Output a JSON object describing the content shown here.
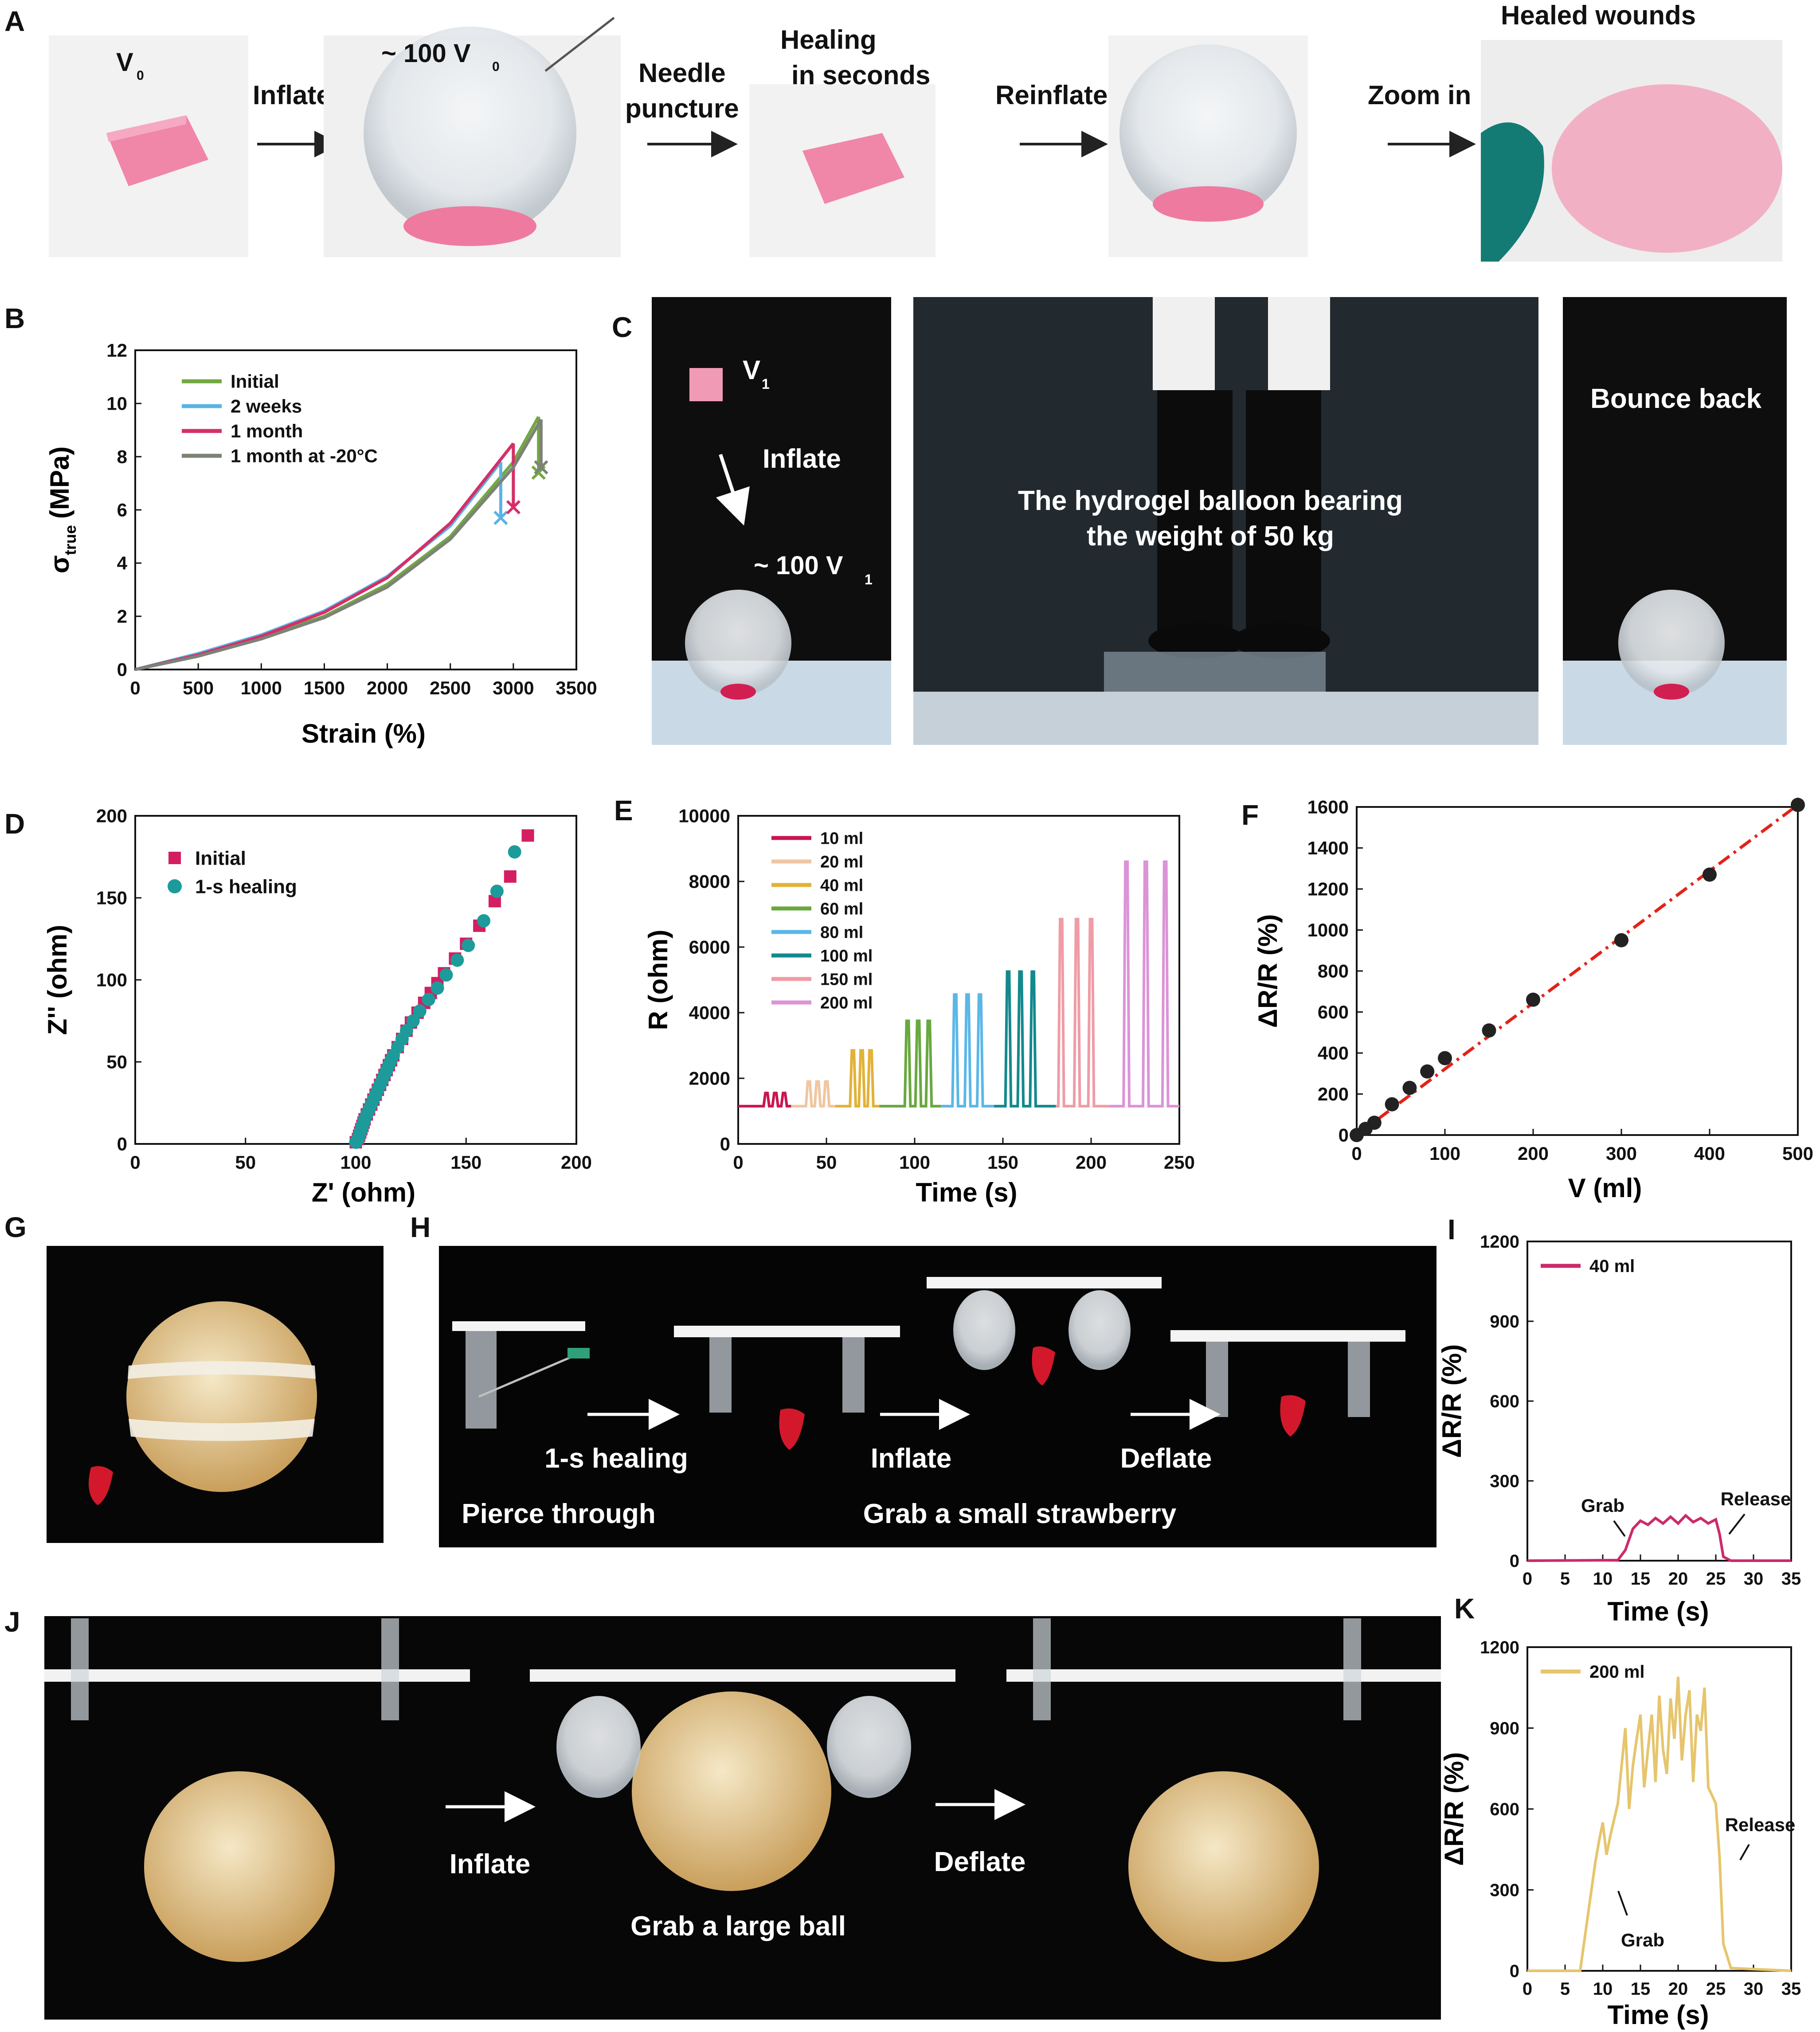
{
  "panel_letters": {
    "a": "A",
    "b": "B",
    "c": "C",
    "d": "D",
    "e": "E",
    "f": "F",
    "g": "G",
    "h": "H",
    "i": "I",
    "j": "J",
    "k": "K"
  },
  "panel_a": {
    "v0": "V",
    "v0_sub": "0",
    "inflate": "Inflate",
    "tilde_100": "~ 100 V",
    "tilde_100_sub": "0",
    "needle_1": "Needle",
    "needle_2": "puncture",
    "healing_1": "Healing",
    "healing_2": "in seconds",
    "reinflate": "Reinflate",
    "zoom_in": "Zoom in",
    "healed_wounds": "Healed wounds"
  },
  "panel_c": {
    "v1": "V",
    "v1_sub": "1",
    "inflate": "Inflate",
    "tilde_100": "~ 100 V",
    "tilde_100_sub": "1",
    "bearing_1": "The hydrogel balloon bearing",
    "bearing_2": "the weight of 50 kg",
    "bounce_back": "Bounce back"
  },
  "panel_h": {
    "healing": "1-s healing",
    "inflate": "Inflate",
    "deflate": "Deflate",
    "pierce": "Pierce through",
    "grab": "Grab a small strawberry"
  },
  "panel_j": {
    "inflate": "Inflate",
    "deflate": "Deflate",
    "grab": "Grab a large ball"
  },
  "colors": {
    "initial_green": "#72a843",
    "two_weeks_blue": "#5ab3e4",
    "one_month_red": "#d52f67",
    "cold_gray": "#7d8277",
    "d_initial": "#d41e62",
    "d_healing": "#1d9b9b",
    "f_line": "#e2231a",
    "i_line": "#cc2a6b",
    "k_line": "#e6c56d",
    "photo_dark": "#111111",
    "hydrogel_pink": "#ef7aa0",
    "ball_tan": "#d9b47a"
  },
  "chart_data": [
    {
      "id": "B",
      "type": "line",
      "xlabel": "Strain (%)",
      "ylabel": "σ",
      "ylabel_sub": "true",
      "ylabel_unit": "(MPa)",
      "xlim": [
        0,
        3500
      ],
      "ylim": [
        0,
        12
      ],
      "xticks": [
        0,
        500,
        1000,
        1500,
        2000,
        2500,
        3000,
        3500
      ],
      "yticks": [
        0,
        2,
        4,
        6,
        8,
        10,
        12
      ],
      "legend": "top-left",
      "series": [
        {
          "name": "Initial",
          "color": "#72a843",
          "x": [
            0,
            500,
            1000,
            1500,
            2000,
            2500,
            3000,
            3200
          ],
          "y": [
            0,
            0.55,
            1.2,
            2.0,
            3.2,
            5.0,
            7.8,
            9.5
          ],
          "break": [
            3200,
            7.4
          ]
        },
        {
          "name": "2 weeks",
          "color": "#5ab3e4",
          "x": [
            0,
            500,
            1000,
            1500,
            2000,
            2500,
            2900
          ],
          "y": [
            0,
            0.6,
            1.3,
            2.2,
            3.5,
            5.4,
            7.8
          ],
          "break": [
            2900,
            5.7
          ]
        },
        {
          "name": "1 month",
          "color": "#d52f67",
          "x": [
            0,
            500,
            1000,
            1500,
            2000,
            2500,
            3000
          ],
          "y": [
            0,
            0.55,
            1.25,
            2.15,
            3.45,
            5.5,
            8.5
          ],
          "break": [
            3000,
            6.1
          ]
        },
        {
          "name": "1 month at -20°C",
          "color": "#7d8277",
          "x": [
            0,
            500,
            1000,
            1500,
            2000,
            2500,
            3000,
            3220
          ],
          "y": [
            0,
            0.5,
            1.15,
            1.95,
            3.1,
            4.9,
            7.6,
            9.4
          ],
          "break": [
            3220,
            7.6
          ]
        }
      ]
    },
    {
      "id": "D",
      "type": "scatter",
      "xlabel": "Z' (ohm)",
      "ylabel": "Z'' (ohm)",
      "xlim": [
        0,
        200
      ],
      "ylim": [
        0,
        200
      ],
      "xticks": [
        0,
        50,
        100,
        150,
        200
      ],
      "yticks": [
        0,
        50,
        100,
        150,
        200
      ],
      "legend": "top-left",
      "series": [
        {
          "name": "Initial",
          "color": "#d41e62",
          "marker": "square",
          "x": [
            100,
            101,
            101.5,
            102,
            102.5,
            103,
            103.5,
            104,
            105,
            106,
            107,
            108,
            109,
            110,
            111,
            112,
            113,
            114,
            115,
            116,
            117,
            119,
            121,
            123,
            125,
            128,
            131,
            134,
            137,
            140,
            145,
            150,
            156,
            163,
            170,
            178
          ],
          "y": [
            1,
            3,
            5,
            7,
            9,
            11,
            13,
            15,
            18,
            21,
            24,
            27,
            30,
            33,
            36,
            39,
            42,
            45,
            48,
            51,
            54,
            59,
            64,
            69,
            74,
            80,
            86,
            92,
            98,
            104,
            113,
            122,
            133,
            148,
            163,
            188
          ]
        },
        {
          "name": "1-s healing",
          "color": "#1d9b9b",
          "marker": "circle",
          "x": [
            100,
            101,
            101.5,
            102,
            102.5,
            103,
            103.5,
            104,
            105,
            106,
            107,
            108,
            109,
            110,
            111,
            112,
            113,
            114,
            115,
            116,
            117,
            119,
            121,
            123,
            126,
            129,
            133,
            137,
            141,
            146,
            151,
            158,
            164,
            172
          ],
          "y": [
            1,
            3,
            5,
            7,
            9,
            11,
            13,
            15,
            18,
            21,
            24,
            27,
            30,
            33,
            36,
            39,
            42,
            45,
            48,
            51,
            54,
            59,
            64,
            69,
            75,
            81,
            88,
            95,
            103,
            112,
            121,
            136,
            154,
            178
          ]
        }
      ]
    },
    {
      "id": "E",
      "type": "line",
      "xlabel": "Time (s)",
      "ylabel": "R (ohm)",
      "xlim": [
        0,
        250
      ],
      "ylim": [
        0,
        10000
      ],
      "xticks": [
        0,
        50,
        100,
        150,
        200,
        250
      ],
      "yticks": [
        0,
        2000,
        4000,
        6000,
        8000,
        10000
      ],
      "legend": "top-left",
      "baseline": 1150,
      "series": [
        {
          "name": "10 ml",
          "color": "#c8174f",
          "start": 0,
          "end": 30,
          "peaks": [
            16,
            21,
            26
          ],
          "peak_value": 1550
        },
        {
          "name": "20 ml",
          "color": "#f0c6a1",
          "start": 30,
          "end": 55,
          "peaks": [
            40,
            45,
            50
          ],
          "peak_value": 1900
        },
        {
          "name": "40 ml",
          "color": "#e2b237",
          "start": 55,
          "end": 80,
          "peaks": [
            65,
            70,
            75
          ],
          "peak_value": 2850
        },
        {
          "name": "60 ml",
          "color": "#69a83f",
          "start": 80,
          "end": 115,
          "peaks": [
            96,
            102,
            108
          ],
          "peak_value": 3750
        },
        {
          "name": "80 ml",
          "color": "#5bb7e8",
          "start": 115,
          "end": 145,
          "peaks": [
            123,
            130,
            137
          ],
          "peak_value": 4550
        },
        {
          "name": "100 ml",
          "color": "#13898d",
          "start": 145,
          "end": 180,
          "peaks": [
            153,
            160,
            167
          ],
          "peak_value": 5250
        },
        {
          "name": "150 ml",
          "color": "#ef9ca6",
          "start": 180,
          "end": 210,
          "peaks": [
            183,
            192,
            200
          ],
          "peak_value": 6850
        },
        {
          "name": "200 ml",
          "color": "#dc93d7",
          "start": 210,
          "end": 250,
          "peaks": [
            220,
            231,
            242
          ],
          "peak_value": 8600
        }
      ]
    },
    {
      "id": "F",
      "type": "scatter",
      "xlabel": "V (ml)",
      "ylabel": "ΔR/R (%)",
      "xlim": [
        0,
        500
      ],
      "ylim": [
        0,
        1600
      ],
      "xticks": [
        0,
        100,
        200,
        300,
        400,
        500
      ],
      "yticks": [
        0,
        200,
        400,
        600,
        800,
        1000,
        1200,
        1400,
        1600
      ],
      "x": [
        0,
        10,
        20,
        40,
        60,
        80,
        100,
        150,
        200,
        300,
        400,
        500
      ],
      "y": [
        0,
        30,
        60,
        150,
        230,
        310,
        375,
        510,
        660,
        950,
        1270,
        1610
      ],
      "error": [
        5,
        5,
        6,
        8,
        8,
        8,
        10,
        10,
        12,
        15,
        20,
        35
      ],
      "fit": {
        "x": [
          0,
          500
        ],
        "y": [
          0,
          1610
        ]
      }
    },
    {
      "id": "I",
      "type": "line",
      "xlabel": "Time (s)",
      "ylabel": "ΔR/R (%)",
      "xlim": [
        0,
        35
      ],
      "ylim": [
        0,
        1200
      ],
      "xticks": [
        0,
        5,
        10,
        15,
        20,
        25,
        30,
        35
      ],
      "yticks": [
        0,
        300,
        600,
        900,
        1200
      ],
      "legend": "top-left",
      "series": [
        {
          "name": "40 ml",
          "color": "#cc2a6b",
          "x": [
            0,
            12,
            13,
            14,
            15,
            16,
            17,
            18,
            19,
            20,
            21,
            22,
            23,
            24,
            25,
            25.5,
            26,
            27,
            35
          ],
          "y": [
            0,
            2,
            40,
            120,
            150,
            135,
            160,
            140,
            165,
            140,
            170,
            145,
            160,
            140,
            155,
            100,
            15,
            0,
            0
          ]
        }
      ],
      "annotations": [
        "Grab",
        "Release"
      ]
    },
    {
      "id": "K",
      "type": "line",
      "xlabel": "Time (s)",
      "ylabel": "ΔR/R (%)",
      "xlim": [
        0,
        35
      ],
      "ylim": [
        0,
        1200
      ],
      "xticks": [
        0,
        5,
        10,
        15,
        20,
        25,
        30,
        35
      ],
      "yticks": [
        0,
        300,
        600,
        900,
        1200
      ],
      "legend": "top-left",
      "series": [
        {
          "name": "200 ml",
          "color": "#e6c56d",
          "x": [
            0,
            7,
            8,
            9,
            9.5,
            10,
            10.5,
            11,
            12,
            13,
            13.5,
            14,
            14.5,
            15,
            15.5,
            16,
            16.5,
            17,
            17.5,
            18,
            18.5,
            19,
            19.5,
            20,
            20.5,
            21,
            21.5,
            22,
            22.5,
            23,
            23.5,
            24,
            25,
            25.5,
            26,
            27,
            35
          ],
          "y": [
            0,
            0,
            200,
            400,
            480,
            550,
            430,
            500,
            620,
            900,
            600,
            760,
            860,
            950,
            680,
            820,
            950,
            700,
            1020,
            820,
            730,
            1010,
            860,
            1090,
            780,
            950,
            1040,
            700,
            950,
            890,
            1050,
            680,
            620,
            420,
            100,
            10,
            0
          ]
        }
      ],
      "annotations": [
        "Grab",
        "Release"
      ]
    }
  ]
}
